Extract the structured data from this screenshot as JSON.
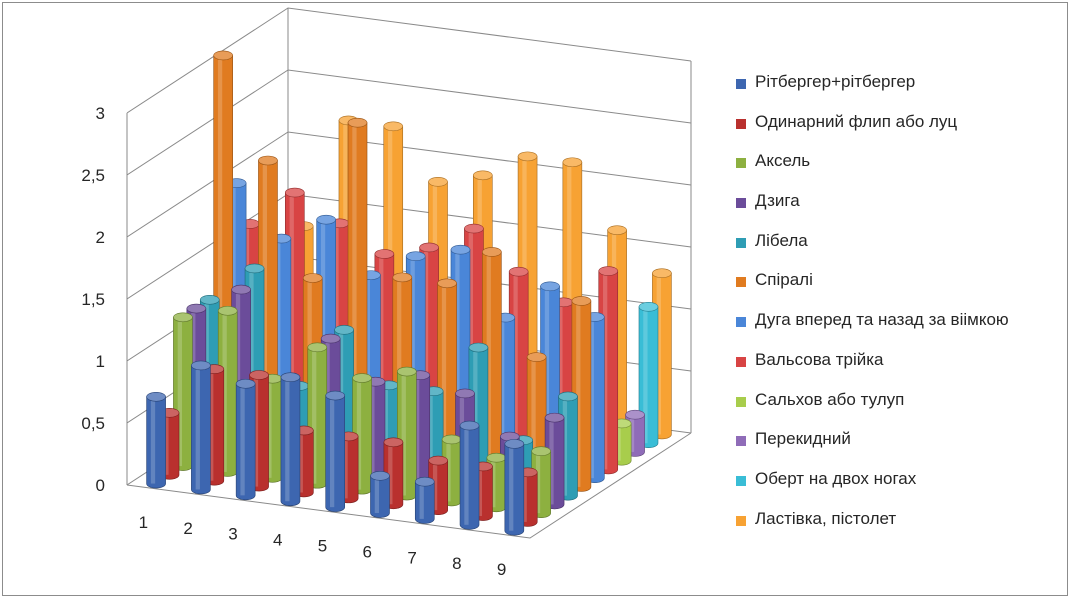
{
  "chart_data": {
    "type": "bar",
    "style": "3d-cylinder",
    "categories": [
      "1",
      "2",
      "3",
      "4",
      "5",
      "6",
      "7",
      "8",
      "9"
    ],
    "yticks": [
      "0",
      "0,5",
      "1",
      "1,5",
      "2",
      "2,5",
      "3"
    ],
    "ylim": [
      0,
      3
    ],
    "grid": true,
    "legend_position": "right",
    "series": [
      {
        "name": "Рітбергер+рітбергер",
        "color": "#3d66b0",
        "values": [
          0.7,
          1,
          0.9,
          1,
          0.9,
          0.3,
          0.3,
          0.8,
          0.7
        ]
      },
      {
        "name": "Одинарний флип або луц",
        "color": "#b9302e",
        "values": [
          0.5,
          0.9,
          0.9,
          0.5,
          0.5,
          0.5,
          0.4,
          0.4,
          0.4
        ]
      },
      {
        "name": "Аксель",
        "color": "#8db040",
        "values": [
          1.2,
          1.3,
          0.8,
          1.1,
          0.9,
          1,
          0.5,
          0.4,
          0.5
        ]
      },
      {
        "name": "Дзига",
        "color": "#6b4c9a",
        "values": [
          1.2,
          1.4,
          0.7,
          1.1,
          0.8,
          0.9,
          0.8,
          0.5,
          0.7
        ]
      },
      {
        "name": "Лібела",
        "color": "#2e9db4",
        "values": [
          1.2,
          1.5,
          0.6,
          1.1,
          0.7,
          0.7,
          1.1,
          0.4,
          0.8
        ]
      },
      {
        "name": "Спіралі",
        "color": "#e07b20",
        "values": [
          3.1,
          2.3,
          1.4,
          2.7,
          1.5,
          1.5,
          1.8,
          1,
          1.5
        ]
      },
      {
        "name": "Дуга вперед та назад за віімкою",
        "color": "#4a86d8",
        "values": [
          2,
          1.6,
          1.8,
          1.4,
          1.6,
          1.7,
          1.2,
          1.5,
          1.3
        ]
      },
      {
        "name": "Вальсова трійка",
        "color": "#d84444",
        "values": [
          1.6,
          1.9,
          1.7,
          1.5,
          1.6,
          1.8,
          1.5,
          1.3,
          1.6
        ]
      },
      {
        "name": "Сальхов або тулуп",
        "color": "#a8cd4c",
        "values": [
          0.4,
          0.3,
          0.4,
          0.3,
          0.4,
          0.3,
          0.4,
          0.3,
          0.3
        ]
      },
      {
        "name": "Перекидний",
        "color": "#8f6cb8",
        "values": [
          0.4,
          0.4,
          0.4,
          0.4,
          0.3,
          0.4,
          0.3,
          0.3,
          0.3
        ]
      },
      {
        "name": "Оберт на двох ногах",
        "color": "#39bdd6",
        "values": [
          0.5,
          0.4,
          0.5,
          0.5,
          0.4,
          0.4,
          0.4,
          0.4,
          1.1
        ]
      },
      {
        "name": "Ластівка, пістолет",
        "color": "#f7a233",
        "values": [
          1.3,
          2.2,
          2.2,
          1.8,
          1.9,
          2.1,
          2.1,
          1.6,
          1.3
        ]
      }
    ]
  }
}
